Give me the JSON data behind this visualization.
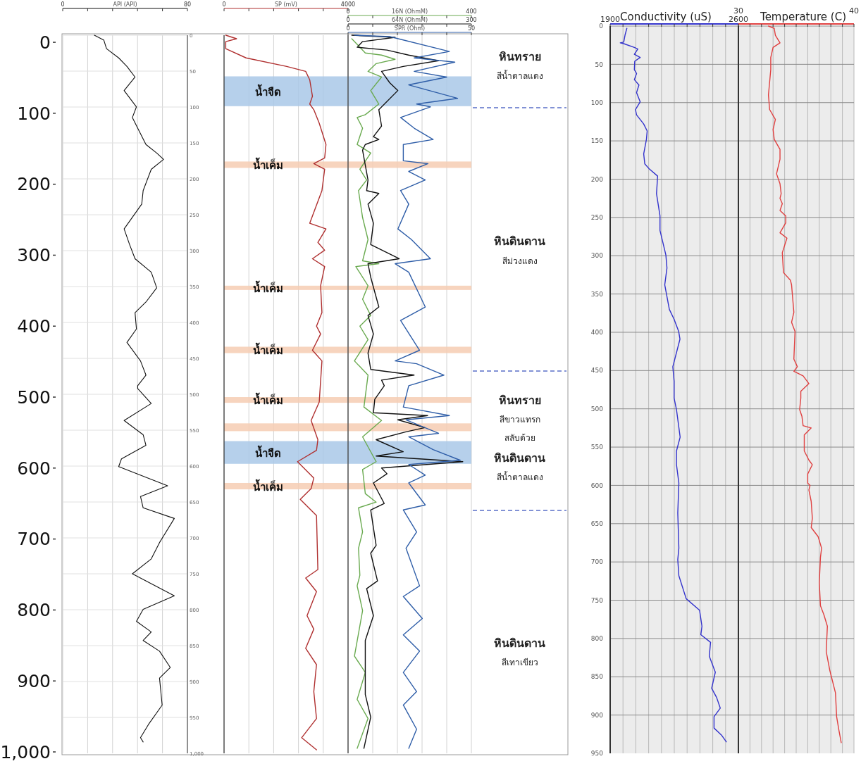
{
  "chart_data": [
    {
      "type": "line",
      "orientation": "horizontal",
      "xlabel": "API (API)",
      "xlim": [
        0,
        80
      ],
      "xticks": [
        0,
        {
          "value": 16,
          "label": null
        },
        {
          "value": 32,
          "label": null
        },
        {
          "value": 48,
          "label": null
        },
        {
          "value": 64,
          "label": null
        },
        80
      ],
      "ylim": [
        1002,
        -10
      ],
      "yticks": [
        0,
        100,
        200,
        300,
        400,
        500,
        600,
        700,
        800,
        900,
        {
          "value": 1000,
          "label": "1,000"
        }
      ],
      "y2lim": [
        1000,
        0
      ],
      "y2ticks": [
        0,
        50,
        100,
        150,
        200,
        250,
        300,
        350,
        400,
        450,
        500,
        550,
        600,
        650,
        700,
        750,
        800,
        850,
        900,
        950,
        {
          "value": 1000,
          "label": "1,000"
        }
      ],
      "grid": true,
      "series": [
        {
          "color": "#111111",
          "x": [
            -10,
            -3,
            9,
            22,
            34,
            49,
            68,
            91,
            106,
            121,
            144,
            156,
            165,
            179,
            209,
            228,
            263,
            285,
            305,
            324,
            346,
            366,
            381,
            404,
            423,
            449,
            469,
            484,
            488,
            509,
            533,
            553,
            568,
            587,
            598,
            625,
            640,
            656,
            671,
            705,
            728,
            749,
            780,
            799,
            816,
            831,
            843,
            858,
            881,
            896,
            934,
            961,
            980,
            986
          ],
          "values": [
            20.3,
            26.4,
            28.1,
            35.9,
            41.2,
            46.4,
            39.4,
            47.3,
            44.7,
            48.1,
            53.4,
            60.3,
            64.7,
            56.8,
            51.6,
            50.7,
            39.4,
            42.9,
            46.4,
            56.8,
            60.3,
            53.4,
            46.4,
            47.3,
            41.2,
            49.9,
            53.4,
            48.1,
            48.1,
            56.8,
            39.4,
            51.6,
            53.4,
            37.7,
            35.9,
            67.3,
            49.9,
            51.6,
            71.6,
            62.1,
            56.8,
            44.7,
            71.6,
            51.6,
            47.3,
            56.8,
            51.6,
            62.1,
            69.0,
            62.1,
            63.8,
            55.1,
            49.9,
            51.6
          ]
        }
      ]
    },
    {
      "type": "line",
      "orientation": "horizontal",
      "xlabel": "SP (mV)",
      "xlim": [
        0,
        4000
      ],
      "xticks": [
        0,
        {
          "value": 800,
          "label": null
        },
        {
          "value": 1600,
          "label": null
        },
        {
          "value": 2400,
          "label": null
        },
        {
          "value": 3200,
          "label": null
        },
        4000
      ],
      "ylim": [
        1002,
        -10
      ],
      "tick_labels": "x",
      "grid": "x",
      "bands": [
        {
          "axis": "y",
          "from": 48,
          "to": 90,
          "label": "น้ำจืด",
          "color": "#a9c8e8"
        },
        {
          "axis": "y",
          "from": 168,
          "to": 177,
          "label": "น้ำเค็ม",
          "color": "#f6cdb3"
        },
        {
          "axis": "y",
          "from": 343,
          "to": 349,
          "label": "น้ำเค็ม",
          "color": "#f6cdb3"
        },
        {
          "axis": "y",
          "from": 429,
          "to": 438,
          "label": "น้ำเค็ม",
          "color": "#f6cdb3"
        },
        {
          "axis": "y",
          "from": 500,
          "to": 508,
          "label": "น้ำเค็ม",
          "color": "#f6cdb3"
        },
        {
          "axis": "y",
          "from": 537,
          "to": 548,
          "color": "#f6cdb3"
        },
        {
          "axis": "y",
          "from": 562,
          "to": 594,
          "label": "น้ำจืด",
          "color": "#a9c8e8"
        },
        {
          "axis": "y",
          "from": 621,
          "to": 630,
          "label": "น้ำเค็ม",
          "color": "#f6cdb3"
        }
      ],
      "series": [
        {
          "color": "#b03030",
          "x": [
            -10,
            -5,
            -1,
            9,
            22,
            34,
            41,
            53,
            76,
            87,
            95,
            114,
            144,
            163,
            171,
            179,
            209,
            255,
            263,
            282,
            293,
            305,
            316,
            343,
            381,
            400,
            411,
            434,
            449,
            507,
            533,
            560,
            575,
            591,
            614,
            629,
            644,
            667,
            743,
            755,
            774,
            808,
            827,
            854,
            877,
            915,
            953,
            980,
            997
          ],
          "values": [
            54,
            404,
            54,
            54,
            710,
            2021,
            2633,
            2764,
            2851,
            2764,
            2895,
            3070,
            3288,
            3245,
            2895,
            3245,
            3157,
            2764,
            3288,
            3026,
            3245,
            2851,
            3245,
            3114,
            3157,
            2982,
            3114,
            2851,
            3157,
            3070,
            2808,
            3026,
            2982,
            2370,
            2895,
            2808,
            2458,
            2982,
            3026,
            2633,
            2982,
            2677,
            2895,
            2633,
            2982,
            2895,
            2982,
            2502,
            2982
          ]
        }
      ]
    },
    {
      "type": "line",
      "orientation": "horizontal",
      "xlabel": "16N (OhmM)",
      "xlim": [
        0,
        400
      ],
      "xticks": [
        0,
        {
          "value": 80,
          "label": null
        },
        {
          "value": 160,
          "label": null
        },
        {
          "value": 240,
          "label": null
        },
        {
          "value": 320,
          "label": null
        },
        400
      ],
      "x2label": "64N (OhmM)",
      "x2lim": [
        0,
        300
      ],
      "x2ticks": [
        0,
        {
          "value": 60,
          "label": null
        },
        {
          "value": 120,
          "label": null
        },
        {
          "value": 180,
          "label": null
        },
        {
          "value": 240,
          "label": null
        },
        300
      ],
      "ylim": [
        1002,
        -10
      ],
      "tick_labels": "x",
      "grid": "x",
      "bands": [
        {
          "axis": "y",
          "from": 48,
          "to": 90,
          "color": "#a9c8e8"
        },
        {
          "axis": "y",
          "from": 168,
          "to": 177,
          "color": "#f6cdb3"
        },
        {
          "axis": "y",
          "from": 343,
          "to": 349,
          "color": "#f6cdb3"
        },
        {
          "axis": "y",
          "from": 429,
          "to": 438,
          "color": "#f6cdb3"
        },
        {
          "axis": "y",
          "from": 500,
          "to": 508,
          "color": "#f6cdb3"
        },
        {
          "axis": "y",
          "from": 537,
          "to": 548,
          "color": "#f6cdb3"
        },
        {
          "axis": "y",
          "from": 562,
          "to": 594,
          "color": "#a9c8e8"
        },
        {
          "axis": "y",
          "from": 621,
          "to": 630,
          "color": "#f6cdb3"
        }
      ],
      "series": [
        {
          "color": "#6aaa50",
          "x": [
            -5,
            3,
            15,
            18,
            24,
            30,
            41,
            49,
            68,
            87,
            102,
            106,
            121,
            144,
            156,
            179,
            194,
            209,
            247,
            278,
            308,
            312,
            316,
            343,
            362,
            385,
            400,
            419,
            449,
            469,
            514,
            533,
            556,
            591,
            602,
            636,
            648,
            656,
            690,
            713,
            751,
            766,
            801,
            865,
            888,
            926,
            953,
            995
          ],
          "values": [
            12,
            29.5,
            55.9,
            108.6,
            152.6,
            91.1,
            64.7,
            108.6,
            73.5,
            99.8,
            55.9,
            29.5,
            47.1,
            29.5,
            73.5,
            38.3,
            60.3,
            33.9,
            47.1,
            64.7,
            47.1,
            99.8,
            25.1,
            64.7,
            47.1,
            73.5,
            38.3,
            64.7,
            20.7,
            64.7,
            51.5,
            108.6,
            47.1,
            91.1,
            47.1,
            55.9,
            91.1,
            33.9,
            47.1,
            33.9,
            38.3,
            29.5,
            47.1,
            20.7,
            55.9,
            29.5,
            64.7,
            29.5
          ]
        },
        {
          "color": "#111111",
          "axis": "x2",
          "x": [
            -10,
            -7,
            -1,
            7,
            11,
            18,
            26,
            34,
            41,
            57,
            68,
            95,
            118,
            133,
            137,
            144,
            152,
            194,
            209,
            213,
            228,
            255,
            285,
            305,
            312,
            331,
            373,
            385,
            411,
            438,
            461,
            469,
            476,
            484,
            503,
            522,
            526,
            532,
            543,
            549,
            560,
            577,
            583,
            591,
            600,
            608,
            621,
            650,
            659,
            709,
            720,
            759,
            770,
            808,
            843,
            919,
            951,
            995
          ],
          "values": [
            9.0,
            114.5,
            35.3,
            22.2,
            94.7,
            147.3,
            219.9,
            134.2,
            81.5,
            101.3,
            121.0,
            74.9,
            81.5,
            61.7,
            74.9,
            41.9,
            35.3,
            48.5,
            45.2,
            74.9,
            48.5,
            61.7,
            55.1,
            124.3,
            48.5,
            55.1,
            74.9,
            48.5,
            61.7,
            48.5,
            55.1,
            160.6,
            81.5,
            88.1,
            65.0,
            61.7,
            193.6,
            121.0,
            187.0,
            140.8,
            68.3,
            134.2,
            68.3,
            279.1,
            81.5,
            94.7,
            61.7,
            88.1,
            55.1,
            68.3,
            55.1,
            71.6,
            45.2,
            61.7,
            41.9,
            41.9,
            55.1,
            38.6
          ]
        }
      ]
    },
    {
      "type": "line",
      "orientation": "horizontal",
      "xlabel": "SPR (Ohm)",
      "xlim": [
        0,
        50
      ],
      "xticks": [
        0,
        {
          "value": 10,
          "label": null
        },
        {
          "value": 20,
          "label": null
        },
        {
          "value": 30,
          "label": null
        },
        {
          "value": 40,
          "label": null
        },
        50
      ],
      "ylim": [
        1002,
        -10
      ],
      "tick_labels": "x",
      "series": [
        {
          "color": "#2f5ea8",
          "x": [
            -10,
            -8,
            13,
            22,
            28,
            41,
            49,
            60,
            79,
            87,
            91,
            106,
            121,
            137,
            144,
            167,
            171,
            182,
            194,
            209,
            228,
            263,
            278,
            305,
            312,
            324,
            373,
            392,
            434,
            449,
            453,
            469,
            484,
            514,
            526,
            532,
            551,
            556,
            574,
            589,
            595,
            610,
            621,
            652,
            659,
            690,
            713,
            766,
            781,
            812,
            835,
            858,
            888,
            915,
            934,
            968,
            995
          ],
          "values": [
            2.6,
            16.9,
            41.1,
            26.8,
            43.3,
            26.8,
            40.0,
            24.6,
            44.4,
            27.8,
            33.4,
            21.3,
            26.8,
            34.5,
            22.4,
            22.4,
            32.4,
            24.6,
            31.3,
            21.3,
            24.6,
            20.2,
            25.7,
            33.4,
            19.1,
            24.6,
            31.3,
            21.3,
            29.0,
            19.1,
            27.8,
            38.9,
            24.6,
            22.4,
            41.1,
            23.5,
            36.7,
            24.6,
            34.5,
            45.5,
            24.6,
            31.3,
            24.6,
            31.3,
            22.4,
            27.8,
            23.5,
            29.0,
            22.4,
            30.1,
            22.4,
            29.0,
            22.4,
            27.8,
            22.4,
            27.8,
            24.6
          ]
        }
      ]
    },
    {
      "type": "other",
      "annotations": [
        "หินทราย",
        "สีน้ำตาลแดง",
        "หินดินดาน",
        "สีม่วงแดง",
        "หินทราย",
        "สีขาวแทรก",
        "สลับด้วย",
        "หินดินดาน",
        "สีน้ำตาลแดง",
        "หินดินดาน",
        "สีเทาเขียว"
      ]
    },
    {
      "type": "line",
      "orientation": "horizontal",
      "xlabel": "Conductivity (uS)",
      "xlim": [
        1900,
        2600
      ],
      "xticks": [
        1900,
        {
          "value": 1970,
          "label": null
        },
        {
          "value": 2040,
          "label": null
        },
        {
          "value": 2110,
          "label": null
        },
        {
          "value": 2180,
          "label": null
        },
        {
          "value": 2250,
          "label": null
        },
        {
          "value": 2320,
          "label": null
        },
        {
          "value": 2390,
          "label": null
        },
        {
          "value": 2460,
          "label": null
        },
        {
          "value": 2530,
          "label": null
        },
        2600
      ],
      "ylim": [
        950,
        0
      ],
      "yticks": [
        0,
        50,
        100,
        150,
        200,
        250,
        300,
        350,
        400,
        450,
        500,
        550,
        600,
        650,
        700,
        750,
        800,
        850,
        900,
        950
      ],
      "grid": true,
      "series": [
        {
          "color": "#3333cc",
          "x": [
            3,
            12,
            21,
            22,
            23,
            28,
            30,
            37,
            41,
            46,
            57,
            62,
            70,
            77,
            87,
            99,
            109,
            116,
            128,
            137,
            148,
            167,
            180,
            187,
            196,
            219,
            248,
            267,
            299,
            316,
            338,
            370,
            383,
            399,
            409,
            445,
            464,
            486,
            501,
            537,
            555,
            573,
            597,
            636,
            682,
            697,
            718,
            748,
            763,
            784,
            795,
            805,
            823,
            844,
            865,
            877,
            891,
            902,
            917,
            926,
            935
          ],
          "values": [
            1991,
            1981,
            1974,
            1955,
            1974,
            2032,
            2051,
            2032,
            2064,
            2034,
            2032,
            2044,
            2032,
            2057,
            2044,
            2064,
            2038,
            2044,
            2083,
            2102,
            2098,
            2083,
            2089,
            2115,
            2159,
            2153,
            2172,
            2172,
            2204,
            2210,
            2198,
            2223,
            2249,
            2274,
            2281,
            2242,
            2249,
            2249,
            2262,
            2282,
            2262,
            2262,
            2275,
            2269,
            2275,
            2269,
            2275,
            2315,
            2388,
            2401,
            2395,
            2448,
            2441,
            2474,
            2454,
            2481,
            2501,
            2467,
            2467,
            2507,
            2534
          ]
        }
      ]
    },
    {
      "type": "line",
      "orientation": "horizontal",
      "xlabel": "Temperature (C)",
      "xlim": [
        30,
        40
      ],
      "xticks": [
        30,
        {
          "value": 31,
          "label": null
        },
        {
          "value": 32,
          "label": null
        },
        {
          "value": 33,
          "label": null
        },
        {
          "value": 34,
          "label": null
        },
        {
          "value": 35,
          "label": null
        },
        {
          "value": 36,
          "label": null
        },
        {
          "value": 37,
          "label": null
        },
        {
          "value": 38,
          "label": null
        },
        {
          "value": 39,
          "label": null
        },
        40
      ],
      "ylim": [
        950,
        0
      ],
      "yticks": [
        0,
        50,
        100,
        150,
        200,
        250,
        300,
        350,
        400,
        450,
        500,
        550,
        600,
        650,
        700,
        750,
        800,
        850,
        900,
        950
      ],
      "tick_labels": "x",
      "grid": true,
      "series": [
        {
          "color": "#e04040",
          "x": [
            0,
            3,
            12,
            22,
            28,
            41,
            57,
            90,
            109,
            122,
            135,
            148,
            161,
            174,
            193,
            206,
            219,
            225,
            232,
            241,
            248,
            257,
            270,
            277,
            296,
            322,
            332,
            338,
            374,
            387,
            399,
            435,
            445,
            451,
            457,
            467,
            477,
            486,
            501,
            510,
            522,
            525,
            534,
            546,
            555,
            567,
            573,
            585,
            597,
            600,
            606,
            621,
            643,
            655,
            667,
            682,
            694,
            727,
            757,
            769,
            784,
            817,
            841,
            847,
            865,
            871,
            902,
            920,
            936
          ],
          "values": [
            32.6,
            33.1,
            33.2,
            33.6,
            33.0,
            32.8,
            32.8,
            32.6,
            32.7,
            33.2,
            33.0,
            33.1,
            33.6,
            33.6,
            33.3,
            33.6,
            33.7,
            33.6,
            33.8,
            33.6,
            34.1,
            34.1,
            33.6,
            34.2,
            33.8,
            33.9,
            34.5,
            34.6,
            34.8,
            34.6,
            34.9,
            34.8,
            35.1,
            34.8,
            35.6,
            36.1,
            35.4,
            35.4,
            35.3,
            35.5,
            35.6,
            36.3,
            35.7,
            35.7,
            35.7,
            36.1,
            36.4,
            36.0,
            36.0,
            36.2,
            36.1,
            36.3,
            36.4,
            36.3,
            36.9,
            37.2,
            37.1,
            37.0,
            37.1,
            37.4,
            37.7,
            37.6,
            37.9,
            38.0,
            38.3,
            38.4,
            38.5,
            38.7,
            38.9
          ]
        }
      ]
    }
  ]
}
